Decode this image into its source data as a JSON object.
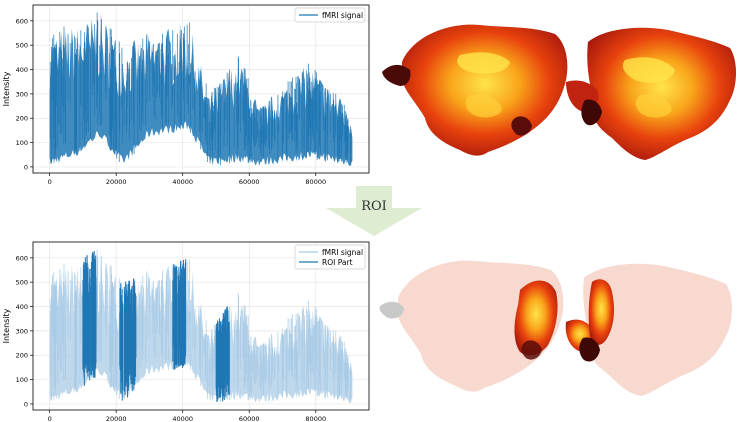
{
  "colors": {
    "signal": "#1f77b4",
    "signal_faded": "#a9cbe6",
    "arrow": "#deedd1",
    "grid": "#e6e6e6",
    "heat_dark": "#5a0d0a",
    "heat_red": "#d81f10",
    "heat_orange": "#f06a0c",
    "heat_yellow": "#ffe54a"
  },
  "arrow": {
    "label": "ROI"
  },
  "brain_icons": [
    "brain-flatmap-full-activation",
    "brain-flatmap-roi-highlight"
  ],
  "chart_data": [
    {
      "type": "line",
      "title": "",
      "xlabel": "",
      "ylabel": "Intensity",
      "xlim": [
        -5000,
        96000
      ],
      "ylim": [
        -25,
        665
      ],
      "xticks": [
        0,
        20000,
        40000,
        60000,
        80000
      ],
      "xtick_labels": [
        "0",
        "20000",
        "40000",
        "60000",
        "80000"
      ],
      "yticks": [
        0,
        100,
        200,
        300,
        400,
        500,
        600
      ],
      "ytick_labels": [
        "0",
        "100",
        "200",
        "300",
        "400",
        "500",
        "600"
      ],
      "grid": true,
      "legend": "top-right",
      "series": [
        {
          "name": "fMRI signal",
          "x": [
            0,
            8000,
            15000,
            22000,
            30000,
            42000,
            48000,
            57000,
            63000,
            78000,
            87000,
            91000
          ],
          "upper": [
            560,
            590,
            640,
            500,
            560,
            600,
            300,
            470,
            250,
            430,
            300,
            200
          ],
          "lower": [
            0,
            40,
            120,
            0,
            120,
            150,
            0,
            20,
            0,
            30,
            10,
            0
          ]
        }
      ]
    },
    {
      "type": "line",
      "title": "",
      "xlabel": "",
      "ylabel": "Intensity",
      "xlim": [
        -5000,
        96000
      ],
      "ylim": [
        -25,
        665
      ],
      "xticks": [
        0,
        20000,
        40000,
        60000,
        80000
      ],
      "xtick_labels": [
        "0",
        "20000",
        "40000",
        "60000",
        "80000"
      ],
      "yticks": [
        0,
        100,
        200,
        300,
        400,
        500,
        600
      ],
      "ytick_labels": [
        "0",
        "100",
        "200",
        "300",
        "400",
        "500",
        "600"
      ],
      "grid": true,
      "legend": "top-right",
      "series": [
        {
          "name": "fMRI signal",
          "x": [
            0,
            8000,
            15000,
            22000,
            30000,
            42000,
            48000,
            57000,
            63000,
            78000,
            87000,
            91000
          ],
          "upper": [
            560,
            590,
            640,
            500,
            560,
            600,
            300,
            470,
            250,
            430,
            300,
            200
          ],
          "lower": [
            0,
            40,
            120,
            0,
            120,
            150,
            0,
            20,
            0,
            30,
            10,
            0
          ]
        },
        {
          "name": "ROI Part",
          "segments": [
            [
              10000,
              14000
            ],
            [
              21000,
              26000
            ],
            [
              37000,
              41000
            ],
            [
              50000,
              54000
            ]
          ]
        }
      ]
    }
  ]
}
